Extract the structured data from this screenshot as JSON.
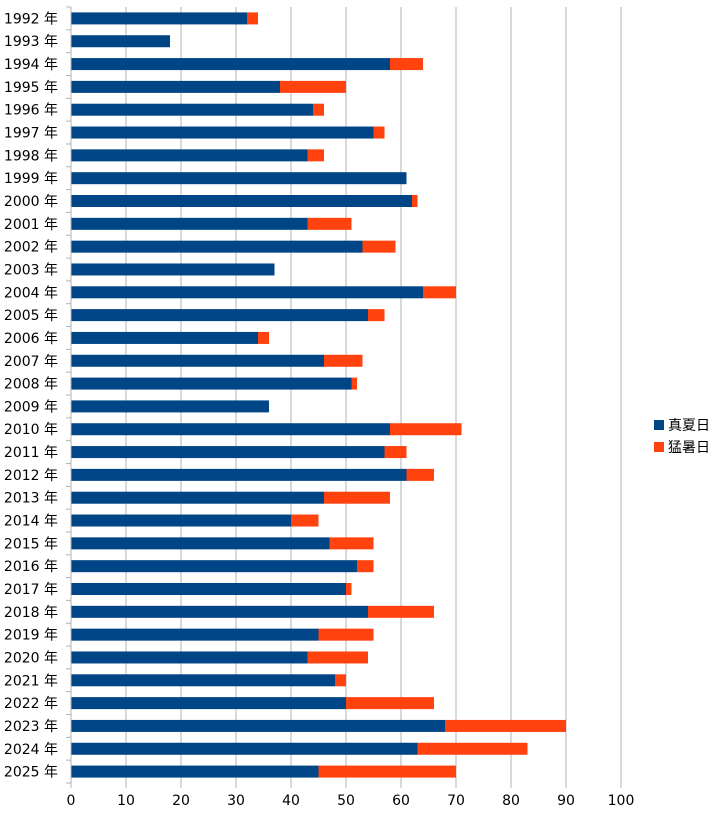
{
  "chart_data": {
    "type": "bar",
    "orientation": "horizontal",
    "stacked": true,
    "categories": [
      "1992 年",
      "1993 年",
      "1994 年",
      "1995 年",
      "1996 年",
      "1997 年",
      "1998 年",
      "1999 年",
      "2000 年",
      "2001 年",
      "2002 年",
      "2003 年",
      "2004 年",
      "2005 年",
      "2006 年",
      "2007 年",
      "2008 年",
      "2009 年",
      "2010 年",
      "2011 年",
      "2012 年",
      "2013 年",
      "2014 年",
      "2015 年",
      "2016 年",
      "2017 年",
      "2018 年",
      "2019 年",
      "2020 年",
      "2021 年",
      "2022 年",
      "2023 年",
      "2024 年",
      "2025 年"
    ],
    "series": [
      {
        "name": "真夏日",
        "color": "#004586",
        "values": [
          32,
          18,
          58,
          38,
          44,
          55,
          43,
          61,
          62,
          43,
          53,
          37,
          64,
          54,
          34,
          46,
          51,
          36,
          58,
          57,
          61,
          46,
          40,
          47,
          52,
          50,
          54,
          45,
          43,
          48,
          50,
          68,
          63,
          45
        ]
      },
      {
        "name": "猛暑日",
        "color": "#ff420e",
        "values": [
          2,
          0,
          6,
          12,
          2,
          2,
          3,
          0,
          1,
          8,
          6,
          0,
          6,
          3,
          2,
          7,
          1,
          0,
          13,
          4,
          5,
          12,
          5,
          8,
          3,
          1,
          12,
          10,
          11,
          2,
          16,
          22,
          20,
          25
        ]
      }
    ],
    "xlim": [
      0,
      100
    ],
    "xticks": [
      0,
      10,
      20,
      30,
      40,
      50,
      60,
      70,
      80,
      90,
      100
    ],
    "grid": true,
    "legend": "right"
  }
}
